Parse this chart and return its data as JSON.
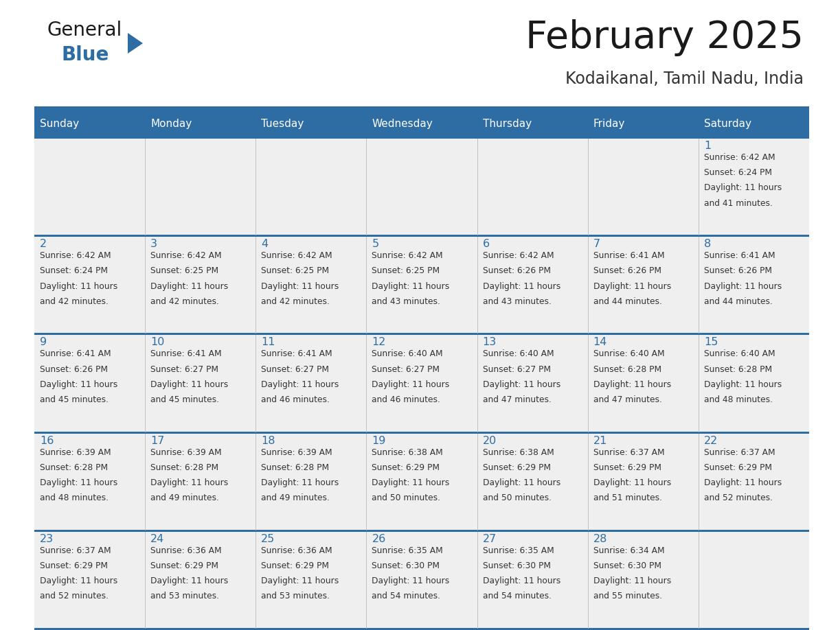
{
  "title": "February 2025",
  "subtitle": "Kodaikanal, Tamil Nadu, India",
  "header_bg": "#2E6DA4",
  "header_text_color": "#FFFFFF",
  "cell_bg_light": "#EFEFEF",
  "cell_bg_white": "#FFFFFF",
  "border_color": "#2E6DA4",
  "day_number_color": "#2E6DA4",
  "text_color": "#333333",
  "days_of_week": [
    "Sunday",
    "Monday",
    "Tuesday",
    "Wednesday",
    "Thursday",
    "Friday",
    "Saturday"
  ],
  "calendar": [
    [
      null,
      null,
      null,
      null,
      null,
      null,
      {
        "day": 1,
        "sunrise": "6:42 AM",
        "sunset": "6:24 PM",
        "daylight": "11 hours and 41 minutes."
      }
    ],
    [
      {
        "day": 2,
        "sunrise": "6:42 AM",
        "sunset": "6:24 PM",
        "daylight": "11 hours and 42 minutes."
      },
      {
        "day": 3,
        "sunrise": "6:42 AM",
        "sunset": "6:25 PM",
        "daylight": "11 hours and 42 minutes."
      },
      {
        "day": 4,
        "sunrise": "6:42 AM",
        "sunset": "6:25 PM",
        "daylight": "11 hours and 42 minutes."
      },
      {
        "day": 5,
        "sunrise": "6:42 AM",
        "sunset": "6:25 PM",
        "daylight": "11 hours and 43 minutes."
      },
      {
        "day": 6,
        "sunrise": "6:42 AM",
        "sunset": "6:26 PM",
        "daylight": "11 hours and 43 minutes."
      },
      {
        "day": 7,
        "sunrise": "6:41 AM",
        "sunset": "6:26 PM",
        "daylight": "11 hours and 44 minutes."
      },
      {
        "day": 8,
        "sunrise": "6:41 AM",
        "sunset": "6:26 PM",
        "daylight": "11 hours and 44 minutes."
      }
    ],
    [
      {
        "day": 9,
        "sunrise": "6:41 AM",
        "sunset": "6:26 PM",
        "daylight": "11 hours and 45 minutes."
      },
      {
        "day": 10,
        "sunrise": "6:41 AM",
        "sunset": "6:27 PM",
        "daylight": "11 hours and 45 minutes."
      },
      {
        "day": 11,
        "sunrise": "6:41 AM",
        "sunset": "6:27 PM",
        "daylight": "11 hours and 46 minutes."
      },
      {
        "day": 12,
        "sunrise": "6:40 AM",
        "sunset": "6:27 PM",
        "daylight": "11 hours and 46 minutes."
      },
      {
        "day": 13,
        "sunrise": "6:40 AM",
        "sunset": "6:27 PM",
        "daylight": "11 hours and 47 minutes."
      },
      {
        "day": 14,
        "sunrise": "6:40 AM",
        "sunset": "6:28 PM",
        "daylight": "11 hours and 47 minutes."
      },
      {
        "day": 15,
        "sunrise": "6:40 AM",
        "sunset": "6:28 PM",
        "daylight": "11 hours and 48 minutes."
      }
    ],
    [
      {
        "day": 16,
        "sunrise": "6:39 AM",
        "sunset": "6:28 PM",
        "daylight": "11 hours and 48 minutes."
      },
      {
        "day": 17,
        "sunrise": "6:39 AM",
        "sunset": "6:28 PM",
        "daylight": "11 hours and 49 minutes."
      },
      {
        "day": 18,
        "sunrise": "6:39 AM",
        "sunset": "6:28 PM",
        "daylight": "11 hours and 49 minutes."
      },
      {
        "day": 19,
        "sunrise": "6:38 AM",
        "sunset": "6:29 PM",
        "daylight": "11 hours and 50 minutes."
      },
      {
        "day": 20,
        "sunrise": "6:38 AM",
        "sunset": "6:29 PM",
        "daylight": "11 hours and 50 minutes."
      },
      {
        "day": 21,
        "sunrise": "6:37 AM",
        "sunset": "6:29 PM",
        "daylight": "11 hours and 51 minutes."
      },
      {
        "day": 22,
        "sunrise": "6:37 AM",
        "sunset": "6:29 PM",
        "daylight": "11 hours and 52 minutes."
      }
    ],
    [
      {
        "day": 23,
        "sunrise": "6:37 AM",
        "sunset": "6:29 PM",
        "daylight": "11 hours and 52 minutes."
      },
      {
        "day": 24,
        "sunrise": "6:36 AM",
        "sunset": "6:29 PM",
        "daylight": "11 hours and 53 minutes."
      },
      {
        "day": 25,
        "sunrise": "6:36 AM",
        "sunset": "6:29 PM",
        "daylight": "11 hours and 53 minutes."
      },
      {
        "day": 26,
        "sunrise": "6:35 AM",
        "sunset": "6:30 PM",
        "daylight": "11 hours and 54 minutes."
      },
      {
        "day": 27,
        "sunrise": "6:35 AM",
        "sunset": "6:30 PM",
        "daylight": "11 hours and 54 minutes."
      },
      {
        "day": 28,
        "sunrise": "6:34 AM",
        "sunset": "6:30 PM",
        "daylight": "11 hours and 55 minutes."
      },
      null
    ]
  ],
  "fig_width": 11.88,
  "fig_height": 9.18,
  "dpi": 100
}
